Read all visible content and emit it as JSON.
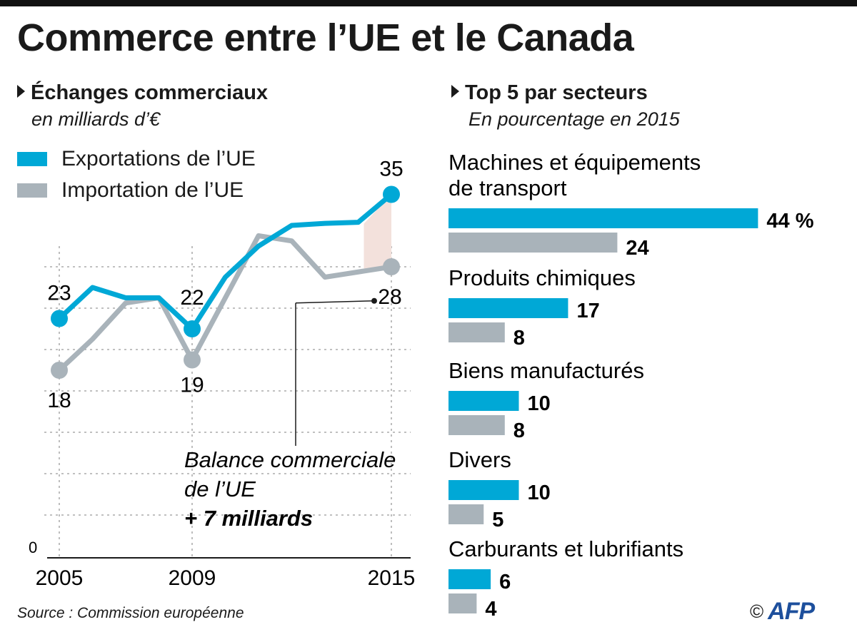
{
  "title": "Commerce entre l’UE et le Canada",
  "left_section": {
    "heading": "Échanges commerciaux",
    "subheading": "en milliards d’€"
  },
  "right_section": {
    "heading": "Top 5 par secteurs",
    "subheading": "En pourcentage en 2015"
  },
  "legend": [
    {
      "label": "Exportations de l’UE",
      "color": "#00a8d6"
    },
    {
      "label": "Importation de l’UE",
      "color": "#a9b3ba"
    }
  ],
  "annotation": {
    "line1": "Balance commerciale",
    "line2": "de l’UE",
    "line3": "+ 7 milliards"
  },
  "source": "Source : Commission européenne",
  "logo": {
    "copyright": "©",
    "brand": "AFP"
  },
  "chart_data": [
    {
      "type": "line",
      "x": [
        2005,
        2006,
        2007,
        2008,
        2009,
        2010,
        2011,
        2012,
        2013,
        2014,
        2015
      ],
      "x_tick_labels": [
        "2005",
        "2009",
        "2015"
      ],
      "y_tick_labels": [
        "0"
      ],
      "ylim": [
        0,
        40
      ],
      "grid": true,
      "series": [
        {
          "name": "Exportations de l’UE",
          "color": "#00a8d6",
          "values": [
            23,
            26,
            25,
            25,
            22,
            27,
            30,
            32,
            32.2,
            32.3,
            35
          ],
          "labels": [
            {
              "x": 2005,
              "text": "23"
            },
            {
              "x": 2009,
              "text": "22"
            },
            {
              "x": 2015,
              "text": "35"
            }
          ]
        },
        {
          "name": "Importation de l’UE",
          "color": "#a9b3ba",
          "values": [
            18,
            21,
            24.5,
            25,
            19,
            25,
            31,
            30.5,
            27,
            27.5,
            28
          ],
          "labels": [
            {
              "x": 2005,
              "text": "18"
            },
            {
              "x": 2009,
              "text": "19"
            },
            {
              "x": 2015,
              "text": "28"
            }
          ]
        }
      ]
    },
    {
      "type": "bar",
      "unit_label": "%",
      "categories": [
        [
          "Machines et équipements",
          "de transport"
        ],
        [
          "Produits chimiques"
        ],
        [
          "Biens manufacturés"
        ],
        [
          "Divers"
        ],
        [
          "Carburants et lubrifiants"
        ]
      ],
      "series": [
        {
          "name": "Exportations de l’UE",
          "color": "#00a8d6",
          "values": [
            44,
            17,
            10,
            10,
            6
          ]
        },
        {
          "name": "Importation de l’UE",
          "color": "#a9b3ba",
          "values": [
            24,
            8,
            8,
            5,
            4
          ]
        }
      ]
    }
  ]
}
